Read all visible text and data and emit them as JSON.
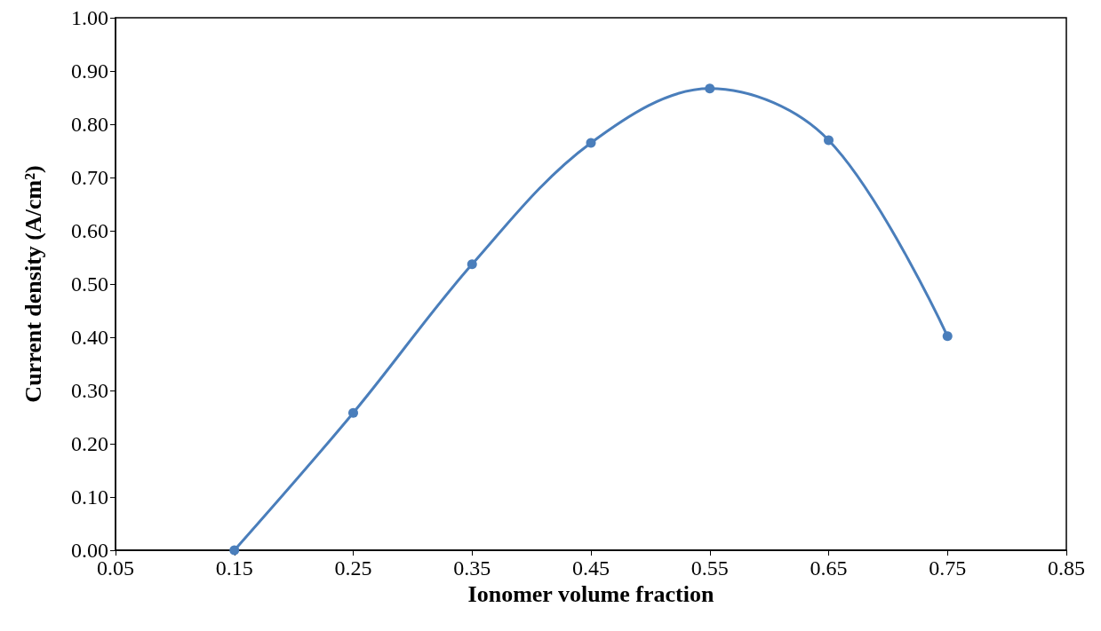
{
  "chart_data": {
    "type": "line",
    "xlabel": "Ionomer volume fraction",
    "ylabel": "Current density (A/cm²)",
    "x": [
      0.15,
      0.25,
      0.35,
      0.45,
      0.55,
      0.65,
      0.75
    ],
    "series": [
      {
        "color": "#4a7ebb",
        "values": [
          0.0,
          0.258,
          0.537,
          0.765,
          0.867,
          0.77,
          0.402
        ]
      }
    ],
    "xlim": [
      0.05,
      0.85
    ],
    "xticks": [
      0.05,
      0.15,
      0.25,
      0.35,
      0.45,
      0.55,
      0.65,
      0.75,
      0.85
    ],
    "ylim": [
      0,
      1
    ],
    "yticks": [
      {
        "value": 0,
        "label": "0.00"
      },
      {
        "value": 0.1,
        "label": "0.10"
      },
      {
        "value": 0.2,
        "label": "0.20"
      },
      {
        "value": 0.3,
        "label": "0.30"
      },
      {
        "value": 0.4,
        "label": "0.40"
      },
      {
        "value": 0.5,
        "label": "0.50"
      },
      {
        "value": 0.6,
        "label": "0.60"
      },
      {
        "value": 0.7,
        "label": "0.70"
      },
      {
        "value": 0.8,
        "label": "0.80"
      },
      {
        "value": 0.9,
        "label": "0.90"
      },
      {
        "value": 1,
        "label": "1.00"
      }
    ],
    "grid": false,
    "marker": "circle",
    "line_style": "solid"
  }
}
